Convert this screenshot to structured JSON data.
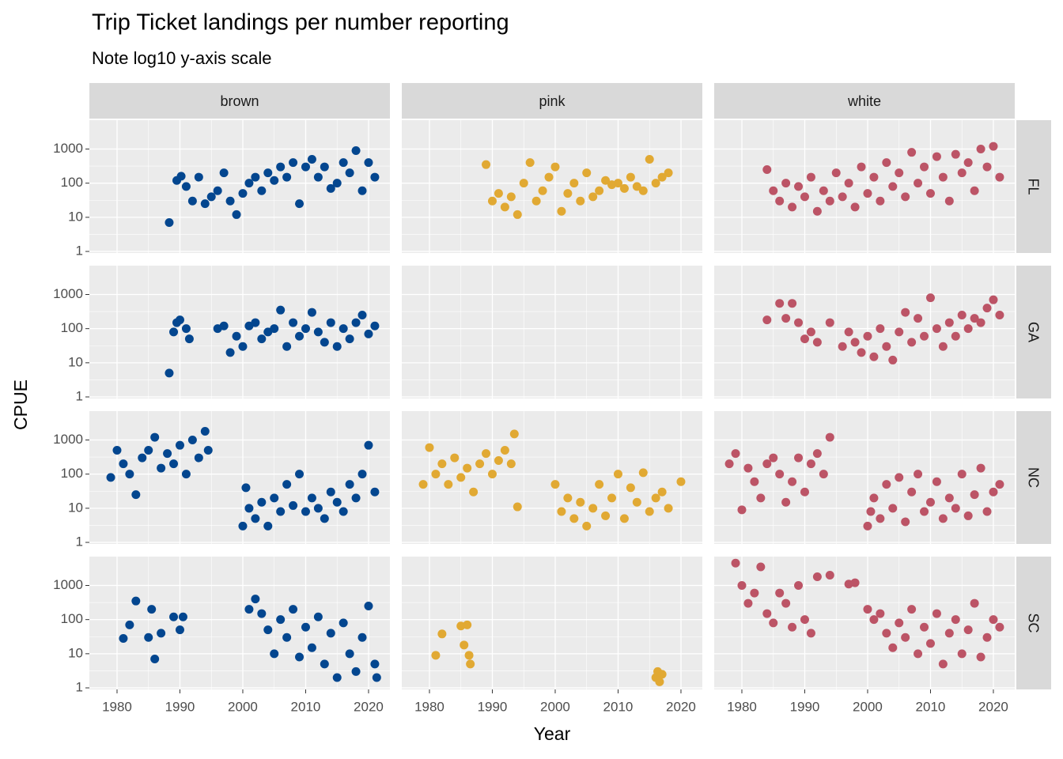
{
  "chart_data": {
    "type": "scatter",
    "title": "Trip Ticket landings per number reporting",
    "subtitle": "Note log10 y-axis scale",
    "x_label": "Year",
    "y_label": "CPUE",
    "columns": [
      "brown",
      "pink",
      "white"
    ],
    "colors": [
      "#03468F",
      "#E1A933",
      "#BC5466"
    ],
    "rows": [
      "FL",
      "GA",
      "NC",
      "SC"
    ],
    "log_y": true,
    "grid": true,
    "xlim": [
      1975.6,
      2023.4
    ],
    "xticks": [
      1980,
      1990,
      2000,
      2010,
      2020
    ],
    "ylim": [
      0.9,
      7000
    ],
    "yticks": [
      1,
      10,
      100,
      1000
    ],
    "panels": [
      [
        {
          "x": [
            1988.3,
            1989.5,
            1990.2,
            1991,
            1992,
            1993,
            1994,
            1995,
            1996,
            1997,
            1998,
            1999,
            2000,
            2001,
            2002,
            2003,
            2004,
            2005,
            2006,
            2007,
            2008,
            2009,
            2010,
            2011,
            2012,
            2013,
            2014,
            2015,
            2016,
            2017,
            2018,
            2019,
            2020,
            2021
          ],
          "values": [
            7,
            120,
            160,
            80,
            30,
            150,
            25,
            40,
            60,
            200,
            30,
            12,
            50,
            100,
            150,
            60,
            200,
            120,
            300,
            150,
            400,
            25,
            300,
            500,
            150,
            300,
            70,
            100,
            400,
            200,
            900,
            60,
            400,
            150
          ]
        },
        {
          "x": [
            1989,
            1990,
            1991,
            1992,
            1993,
            1994,
            1995,
            1996,
            1997,
            1998,
            1999,
            2000,
            2001,
            2002,
            2003,
            2004,
            2005,
            2006,
            2007,
            2008,
            2009,
            2010,
            2011,
            2012,
            2013,
            2014,
            2015,
            2016,
            2017,
            2018
          ],
          "values": [
            350,
            30,
            50,
            20,
            40,
            12,
            100,
            400,
            30,
            60,
            150,
            300,
            15,
            50,
            100,
            30,
            200,
            40,
            60,
            120,
            90,
            100,
            70,
            150,
            80,
            60,
            500,
            100,
            150,
            200
          ]
        },
        {
          "x": [
            1984,
            1985,
            1986,
            1987,
            1988,
            1989,
            1990,
            1991,
            1992,
            1993,
            1994,
            1995,
            1996,
            1997,
            1998,
            1999,
            2000,
            2001,
            2002,
            2003,
            2004,
            2005,
            2006,
            2007,
            2008,
            2009,
            2010,
            2011,
            2012,
            2013,
            2014,
            2015,
            2016,
            2017,
            2018,
            2019,
            2020,
            2021
          ],
          "values": [
            250,
            60,
            30,
            100,
            20,
            80,
            40,
            150,
            15,
            60,
            30,
            200,
            40,
            100,
            20,
            300,
            50,
            150,
            30,
            400,
            80,
            200,
            40,
            800,
            100,
            300,
            50,
            600,
            150,
            30,
            700,
            200,
            400,
            60,
            1000,
            300,
            1200,
            150
          ]
        }
      ],
      [
        {
          "x": [
            1988.3,
            1989,
            1989.5,
            1990,
            1991,
            1991.5,
            1996,
            1997,
            1998,
            1999,
            2000,
            2001,
            2002,
            2003,
            2004,
            2005,
            2006,
            2007,
            2008,
            2009,
            2010,
            2011,
            2012,
            2013,
            2014,
            2015,
            2016,
            2017,
            2018,
            2019,
            2020,
            2021
          ],
          "values": [
            5,
            80,
            150,
            180,
            100,
            50,
            100,
            120,
            20,
            60,
            30,
            120,
            150,
            50,
            80,
            100,
            350,
            30,
            150,
            60,
            100,
            300,
            80,
            40,
            150,
            30,
            100,
            50,
            150,
            250,
            70,
            120
          ]
        },
        {
          "x": [],
          "values": []
        },
        {
          "x": [
            1984,
            1986,
            1987,
            1988,
            1989,
            1990,
            1991,
            1992,
            1994,
            1996,
            1997,
            1998,
            1999,
            2000,
            2001,
            2002,
            2003,
            2004,
            2005,
            2006,
            2007,
            2008,
            2009,
            2010,
            2011,
            2012,
            2013,
            2014,
            2015,
            2016,
            2017,
            2018,
            2019,
            2020,
            2021
          ],
          "values": [
            180,
            550,
            200,
            550,
            150,
            50,
            80,
            40,
            150,
            30,
            80,
            40,
            20,
            60,
            15,
            100,
            30,
            12,
            80,
            300,
            40,
            200,
            60,
            800,
            100,
            30,
            150,
            60,
            250,
            100,
            200,
            150,
            400,
            700,
            250
          ]
        }
      ],
      [
        {
          "x": [
            1979,
            1980,
            1981,
            1982,
            1983,
            1984,
            1985,
            1986,
            1987,
            1988,
            1989,
            1990,
            1991,
            1992,
            1993,
            1994,
            1994.5,
            2000,
            2000.5,
            2001,
            2002,
            2003,
            2004,
            2005,
            2006,
            2007,
            2008,
            2009,
            2010,
            2011,
            2012,
            2013,
            2014,
            2015,
            2016,
            2017,
            2018,
            2019,
            2020,
            2021
          ],
          "values": [
            80,
            500,
            200,
            100,
            25,
            300,
            500,
            1200,
            150,
            400,
            200,
            700,
            100,
            1000,
            300,
            1800,
            500,
            3,
            40,
            10,
            5,
            15,
            3,
            20,
            8,
            50,
            12,
            100,
            8,
            20,
            10,
            5,
            30,
            15,
            8,
            50,
            20,
            100,
            700,
            30
          ]
        },
        {
          "x": [
            1979,
            1980,
            1981,
            1982,
            1983,
            1984,
            1985,
            1986,
            1987,
            1988,
            1989,
            1990,
            1991,
            1992,
            1993,
            1993.5,
            1994,
            2000,
            2001,
            2002,
            2003,
            2004,
            2005,
            2006,
            2007,
            2008,
            2009,
            2010,
            2011,
            2012,
            2013,
            2014,
            2015,
            2016,
            2017,
            2018,
            2020
          ],
          "values": [
            50,
            600,
            100,
            200,
            50,
            300,
            80,
            150,
            30,
            200,
            400,
            100,
            250,
            500,
            200,
            1500,
            11,
            50,
            8,
            20,
            5,
            15,
            3,
            10,
            50,
            6,
            20,
            100,
            5,
            40,
            15,
            110,
            8,
            20,
            30,
            10,
            60
          ]
        },
        {
          "x": [
            1978,
            1979,
            1980,
            1981,
            1982,
            1983,
            1984,
            1985,
            1986,
            1987,
            1988,
            1989,
            1990,
            1991,
            1992,
            1993,
            1994,
            2000,
            2000.5,
            2001,
            2002,
            2003,
            2004,
            2005,
            2006,
            2007,
            2008,
            2009,
            2010,
            2011,
            2012,
            2013,
            2014,
            2015,
            2016,
            2017,
            2018,
            2019,
            2020,
            2021
          ],
          "values": [
            200,
            400,
            9,
            150,
            60,
            20,
            200,
            300,
            100,
            15,
            60,
            300,
            30,
            200,
            400,
            100,
            1200,
            3,
            8,
            20,
            5,
            50,
            10,
            80,
            4,
            30,
            100,
            8,
            15,
            60,
            5,
            20,
            10,
            100,
            6,
            25,
            150,
            8,
            30,
            50
          ]
        }
      ],
      [
        {
          "x": [
            1981,
            1982,
            1983,
            1985,
            1985.5,
            1986,
            1987,
            1989,
            1990,
            1990.5,
            2001,
            2002,
            2003,
            2004,
            2005,
            2006,
            2007,
            2008,
            2009,
            2010,
            2011,
            2012,
            2013,
            2014,
            2015,
            2016,
            2017,
            2018,
            2019,
            2020,
            2021,
            2021.3
          ],
          "values": [
            28,
            70,
            350,
            30,
            200,
            7,
            40,
            120,
            50,
            120,
            200,
            400,
            150,
            50,
            10,
            100,
            30,
            200,
            8,
            60,
            15,
            120,
            5,
            40,
            2,
            80,
            10,
            3,
            30,
            250,
            5,
            2
          ]
        },
        {
          "x": [
            1981,
            1982,
            1985,
            1985.5,
            1986,
            1986.3,
            1986.5,
            2016,
            2016.3,
            2016.6,
            2017
          ],
          "values": [
            9,
            38,
            65,
            18,
            70,
            9,
            5,
            2,
            3,
            1.5,
            2.5
          ]
        },
        {
          "x": [
            1979,
            1980,
            1981,
            1982,
            1983,
            1984,
            1985,
            1986,
            1987,
            1988,
            1989,
            1990,
            1991,
            1992,
            1994,
            1997,
            1998,
            2000,
            2001,
            2002,
            2003,
            2004,
            2005,
            2006,
            2007,
            2008,
            2009,
            2010,
            2011,
            2012,
            2013,
            2014,
            2015,
            2016,
            2017,
            2018,
            2019,
            2020,
            2021
          ],
          "values": [
            4500,
            1000,
            300,
            600,
            3500,
            150,
            80,
            600,
            300,
            60,
            1000,
            100,
            40,
            1800,
            2000,
            1100,
            1200,
            200,
            100,
            150,
            40,
            15,
            80,
            30,
            200,
            10,
            60,
            20,
            150,
            5,
            40,
            100,
            10,
            50,
            300,
            8,
            30,
            100,
            60
          ]
        }
      ]
    ]
  }
}
